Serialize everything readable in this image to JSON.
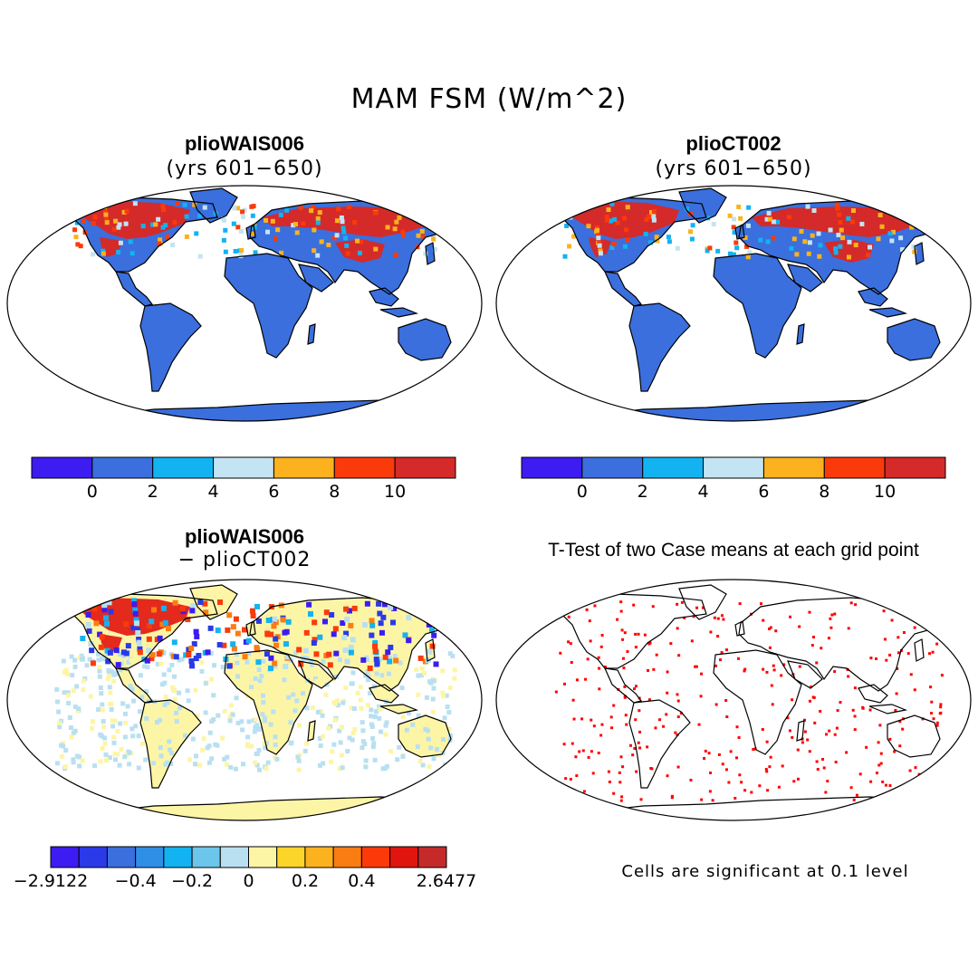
{
  "title": "MAM FSM (W/m^2)",
  "panels": {
    "top_left": {
      "title": "plioWAIS006",
      "subtitle": "(yrs 601−650)"
    },
    "top_right": {
      "title": "plioCT002",
      "subtitle": "(yrs 601−650)"
    },
    "bottom_left": {
      "title": "plioWAIS006",
      "subtitle": "− plioCT002"
    },
    "bottom_right": {
      "title": "T-Test of two Case means at each grid point",
      "note": "Cells are significant at 0.1 level"
    }
  },
  "colorbars": {
    "absolute": {
      "colors": [
        "#3c1cf0",
        "#3a6fdd",
        "#12b3f0",
        "#c3e4f2",
        "#fbb21e",
        "#fb3a0a",
        "#d42a2a"
      ],
      "ticks": [
        "0",
        "2",
        "4",
        "6",
        "8",
        "10"
      ]
    },
    "difference": {
      "colors": [
        "#3c1cf0",
        "#2a3ae8",
        "#3a6fdd",
        "#2f8fe6",
        "#12b3f0",
        "#6cc5ea",
        "#b9e0f0",
        "#fdf5a6",
        "#fcd52b",
        "#fbb21e",
        "#f97d12",
        "#fb3a0a",
        "#e0150f",
        "#c52a2a"
      ],
      "ticks": [
        "−2.9122",
        "−0.4",
        "−0.2",
        "0",
        "0.2",
        "0.4",
        "2.6477"
      ]
    }
  },
  "colors": {
    "ocean": "#ffffff",
    "land_base": "#3a6fdd",
    "snow_high": "#d42a2a",
    "diff_base": "#fdf5a6",
    "significant": "#ff0000"
  }
}
